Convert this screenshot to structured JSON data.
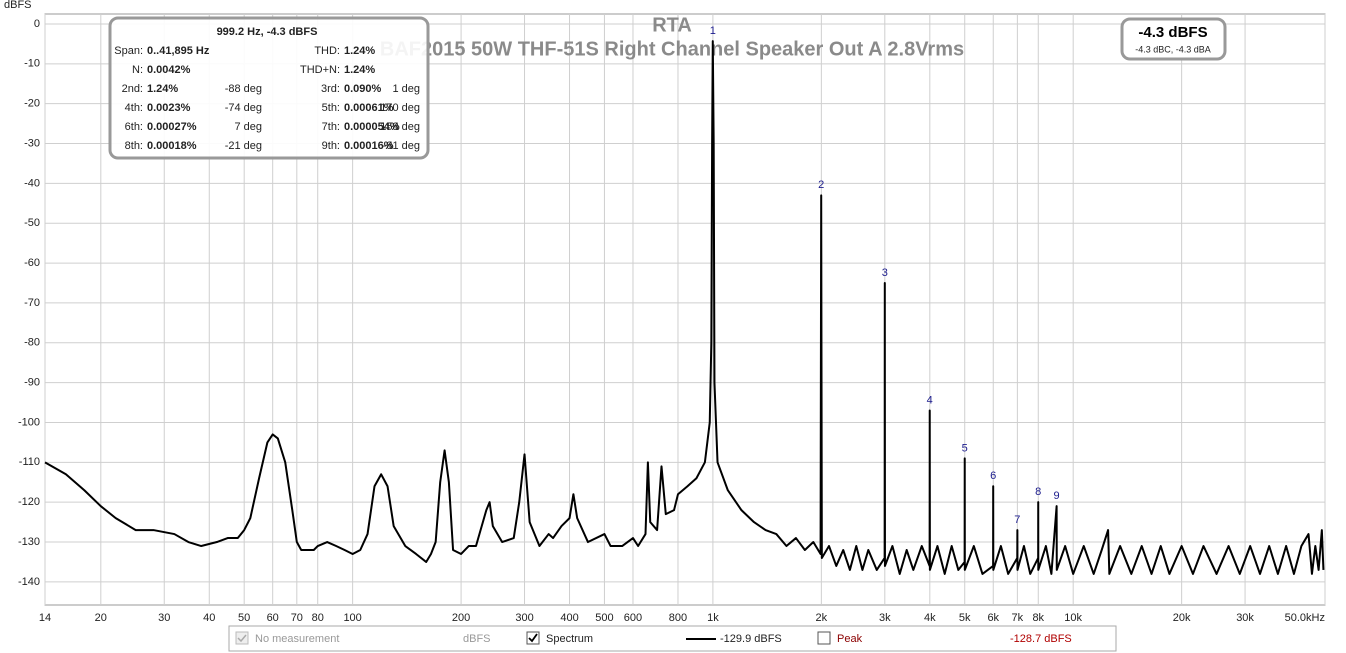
{
  "chart_data": {
    "type": "line",
    "title": "RTA",
    "subtitle": "BAF2015 50W THF-51S Right Channel Speaker Out A 2.8Vrms",
    "y_label": "dBFS",
    "log_x": true,
    "grid": true,
    "xlim": [
      14,
      50000
    ],
    "ylim": [
      -145.8,
      2.5
    ],
    "xticks": [
      14,
      20,
      30,
      40,
      50,
      60,
      70,
      80,
      100,
      200,
      300,
      400,
      500,
      600,
      800,
      {
        "value": 1000,
        "label": "1k"
      },
      {
        "value": 2000,
        "label": "2k"
      },
      {
        "value": 3000,
        "label": "3k"
      },
      {
        "value": 4000,
        "label": "4k"
      },
      {
        "value": 5000,
        "label": "5k"
      },
      {
        "value": 6000,
        "label": "6k"
      },
      {
        "value": 7000,
        "label": "7k"
      },
      {
        "value": 8000,
        "label": "8k"
      },
      {
        "value": 10000,
        "label": "10k"
      },
      {
        "value": 20000,
        "label": "20k"
      },
      {
        "value": 30000,
        "label": "30k"
      },
      {
        "value": 50000,
        "label": "50.0kHz"
      }
    ],
    "yticks": [
      0,
      -10,
      -20,
      -30,
      -40,
      -50,
      -60,
      -70,
      -80,
      -90,
      -100,
      -110,
      -120,
      -130,
      -140
    ],
    "series": [
      {
        "name": "Spectrum",
        "color": "#000000",
        "x": [
          14,
          16,
          18,
          20,
          22,
          25,
          28,
          32,
          35,
          38,
          42,
          45,
          48,
          50,
          52,
          55,
          58,
          60,
          62,
          65,
          68,
          70,
          72,
          78,
          80,
          85,
          90,
          95,
          100,
          105,
          110,
          115,
          120,
          125,
          130,
          140,
          150,
          160,
          165,
          170,
          175,
          180,
          185,
          190,
          200,
          210,
          220,
          235,
          240,
          245,
          260,
          280,
          290,
          300,
          310,
          330,
          350,
          360,
          380,
          400,
          410,
          420,
          450,
          500,
          520,
          560,
          600,
          620,
          650,
          660,
          670,
          700,
          720,
          740,
          780,
          800,
          850,
          900,
          950,
          980,
          990,
          995,
          999.2,
          1005,
          1010,
          1030,
          1100,
          1200,
          1300,
          1400,
          1500,
          1600,
          1700,
          1800,
          1900,
          1990,
          1998,
          2006,
          2100,
          2200,
          2300,
          2400,
          2500,
          2600,
          2700,
          2850,
          2997,
          3000,
          3003,
          3150,
          3300,
          3450,
          3600,
          3800,
          3995,
          3998,
          4002,
          4200,
          4400,
          4600,
          4800,
          4997,
          5000,
          5003,
          5300,
          5600,
          5995,
          5998,
          6002,
          6300,
          6600,
          6995,
          7000,
          7005,
          7300,
          7600,
          7995,
          7998,
          8002,
          8400,
          8700,
          8995,
          9005,
          9500,
          10000,
          10700,
          11400,
          12000,
          12500,
          12600,
          13500,
          14500,
          15500,
          16500,
          17500,
          18500,
          20000,
          21500,
          23000,
          25000,
          27000,
          29000,
          31000,
          33000,
          35000,
          37000,
          39000,
          41000,
          43000,
          45000,
          46000,
          47000,
          48000,
          49000,
          49500
        ],
        "values": [
          -110,
          -113,
          -117,
          -121,
          -124,
          -127,
          -127,
          -128,
          -130,
          -131,
          -130,
          -129,
          -129,
          -127,
          -124,
          -114,
          -105,
          -103,
          -104,
          -110,
          -122,
          -130,
          -132,
          -132,
          -131,
          -130,
          -131,
          -132,
          -133,
          -132,
          -128,
          -116,
          -113,
          -116,
          -126,
          -131,
          -133,
          -135,
          -133,
          -130,
          -115,
          -107,
          -115,
          -132,
          -133,
          -131,
          -131,
          -122,
          -120,
          -126,
          -130,
          -129,
          -120,
          -108,
          -125,
          -131,
          -128,
          -129,
          -126,
          -124,
          -118,
          -124,
          -130,
          -128,
          -131,
          -131,
          -129,
          -131,
          -128,
          -110,
          -125,
          -127,
          -111,
          -123,
          -122,
          -118,
          -116,
          -114,
          -110,
          -100,
          -80,
          -30,
          -4.3,
          -30,
          -90,
          -110,
          -117,
          -122,
          -125,
          -127,
          -128,
          -131,
          -129,
          -132,
          -130,
          -133,
          -43,
          -134,
          -131,
          -136,
          -132,
          -137,
          -131,
          -137,
          -132,
          -137,
          -134,
          -65,
          -136,
          -131,
          -138,
          -132,
          -137,
          -131,
          -136,
          -97,
          -137,
          -131,
          -138,
          -131,
          -137,
          -135,
          -109,
          -137,
          -131,
          -138,
          -136,
          -116,
          -137,
          -131,
          -138,
          -134,
          -127,
          -137,
          -131,
          -138,
          -134,
          -120,
          -137,
          -131,
          -138,
          -121,
          -137,
          -131,
          -138,
          -131,
          -138,
          -132,
          -127,
          -138,
          -131,
          -138,
          -131,
          -138,
          -131,
          -138,
          -131,
          -138,
          -131,
          -138,
          -131,
          -138,
          -131,
          -138,
          -131,
          -138,
          -131,
          -138,
          -131,
          -128,
          -138,
          -131,
          -137,
          -127,
          -137
        ]
      }
    ],
    "annotations": [
      {
        "label": "1",
        "x": 999.2,
        "y": -4.3
      },
      {
        "label": "2",
        "x": 1998,
        "y": -43
      },
      {
        "label": "3",
        "x": 3000,
        "y": -65
      },
      {
        "label": "4",
        "x": 3998,
        "y": -97
      },
      {
        "label": "5",
        "x": 5000,
        "y": -109
      },
      {
        "label": "6",
        "x": 5998,
        "y": -116
      },
      {
        "label": "7",
        "x": 7000,
        "y": -127
      },
      {
        "label": "8",
        "x": 7998,
        "y": -120
      },
      {
        "label": "9",
        "x": 8995,
        "y": -121
      }
    ]
  },
  "info_box": {
    "title": "999.2 Hz, -4.3 dBFS",
    "rows": [
      [
        {
          "label": "Span:",
          "value": "0..41,895 Hz"
        },
        {
          "label": "THD:",
          "value": "1.24%"
        }
      ],
      [
        {
          "label": "N:",
          "value": "0.0042%"
        },
        {
          "label": "THD+N:",
          "value": "1.24%"
        }
      ],
      [
        {
          "label": "2nd:",
          "value": "1.24%",
          "phase": "-88 deg"
        },
        {
          "label": "3rd:",
          "value": "0.090%",
          "phase": "1 deg"
        }
      ],
      [
        {
          "label": "4th:",
          "value": "0.0023%",
          "phase": "-74 deg"
        },
        {
          "label": "5th:",
          "value": "0.00061%",
          "phase": "170 deg"
        }
      ],
      [
        {
          "label": "6th:",
          "value": "0.00027%",
          "phase": "7 deg"
        },
        {
          "label": "7th:",
          "value": "0.000054%",
          "phase": "158 deg"
        }
      ],
      [
        {
          "label": "8th:",
          "value": "0.00018%",
          "phase": "-21 deg"
        },
        {
          "label": "9th:",
          "value": "0.00016%",
          "phase": "-81 deg"
        }
      ]
    ]
  },
  "level_box": {
    "level": "-4.3 dBFS",
    "weighted": "-4.3 dBC, -4.3 dBA"
  },
  "legend_bar": {
    "no_measurement": "No measurement",
    "no_measurement_unit": "dBFS",
    "spectrum": "Spectrum",
    "spectrum_level": "-129.9 dBFS",
    "peak": "Peak",
    "peak_level": "-128.7 dBFS"
  }
}
